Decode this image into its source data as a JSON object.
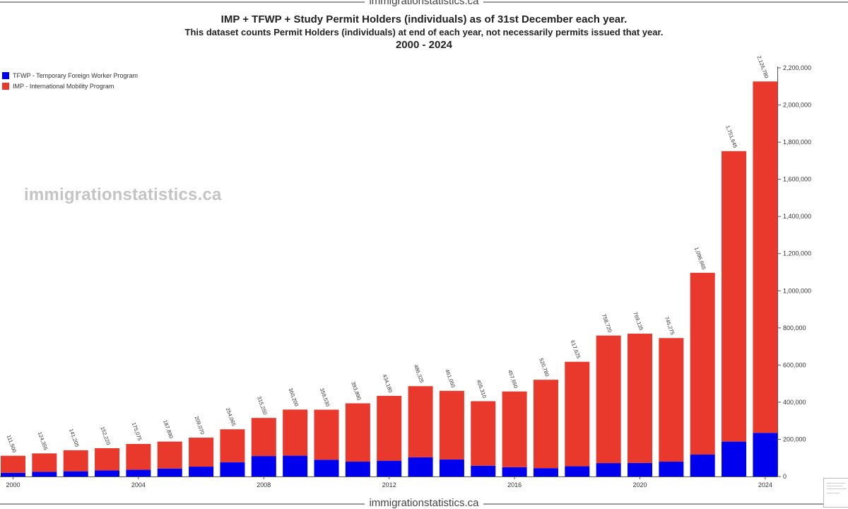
{
  "site": {
    "name": "immigrationstatistics.ca"
  },
  "watermark": "immigrationstatistics.ca",
  "chart_data": {
    "type": "bar",
    "stacked": true,
    "title": "IMP + TFWP + Study Permit Holders (individuals) as of 31st December each year.",
    "subtitle": "This dataset counts Permit Holders (individuals) at end of each year, not necessarily permits issued that year.",
    "period": "2000 - 2024",
    "categories": [
      "2000",
      "2001",
      "2002",
      "2003",
      "2004",
      "2005",
      "2006",
      "2007",
      "2008",
      "2009",
      "2010",
      "2011",
      "2012",
      "2013",
      "2014",
      "2015",
      "2016",
      "2017",
      "2018",
      "2019",
      "2020",
      "2021",
      "2022",
      "2023",
      "2024"
    ],
    "x_tick_labels": [
      "2000",
      "2004",
      "2008",
      "2012",
      "2016",
      "2020",
      "2024"
    ],
    "totals": [
      111500,
      124355,
      141205,
      152220,
      175075,
      187890,
      209070,
      254065,
      315250,
      360200,
      359530,
      393890,
      434180,
      486325,
      461050,
      405310,
      457650,
      520780,
      617625,
      758720,
      769135,
      745275,
      1096665,
      1751645,
      2126780
    ],
    "total_labels": [
      "111,500",
      "124,355",
      "141,205",
      "152,220",
      "175,075",
      "187,890",
      "209,070",
      "254,065",
      "315,250",
      "360,200",
      "359,530",
      "393,890",
      "434,180",
      "486,325",
      "461,050",
      "405,310",
      "457,650",
      "520,780",
      "617,625",
      "758,720",
      "769,135",
      "745,275",
      "1,096,665",
      "1,751,645",
      "2,126,780"
    ],
    "series": [
      {
        "name": "TFWP - Temporary Foreign Worker Program",
        "color": "#0000ee",
        "values": [
          20000,
          25000,
          28000,
          33000,
          36000,
          43000,
          53000,
          77000,
          110000,
          112000,
          90000,
          80000,
          85000,
          103000,
          92000,
          58000,
          50000,
          45000,
          55000,
          72000,
          73000,
          80000,
          118000,
          188000,
          235000
        ]
      },
      {
        "name": "IMP - International Mobility Program",
        "color": "#e8392c",
        "values": [
          91500,
          99355,
          113205,
          119220,
          139075,
          144890,
          156070,
          177065,
          205250,
          248200,
          269530,
          313890,
          349180,
          383325,
          369050,
          347310,
          407650,
          475780,
          562625,
          686720,
          696135,
          665275,
          978665,
          1563645,
          1891780
        ]
      }
    ],
    "ylim": [
      0,
      2200000
    ],
    "y_ticks": [
      0,
      200000,
      400000,
      600000,
      800000,
      1000000,
      1200000,
      1400000,
      1600000,
      1800000,
      2000000,
      2200000
    ],
    "y_tick_labels": [
      "0",
      "200,000",
      "400,000",
      "600,000",
      "800,000",
      "1,000,000",
      "1,200,000",
      "1,400,000",
      "1,600,000",
      "1,800,000",
      "2,000,000",
      "2,200,000"
    ],
    "y_axis_position": "right",
    "legend_position": "top-left",
    "grid": false
  }
}
